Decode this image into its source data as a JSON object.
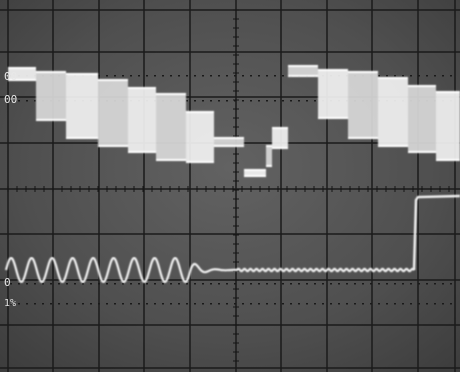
{
  "scope": {
    "edge_labels": {
      "top_left": "00",
      "upper_left": "00",
      "lower_left": "0",
      "lower_left_pct": "1%"
    },
    "colors": {
      "screen": "#4a4a4a",
      "screen_light": "#5a5a5a",
      "grid": "#1b1b1b",
      "trace": "#f2f2f2",
      "trace_dim": "#d9d9d9"
    }
  }
}
